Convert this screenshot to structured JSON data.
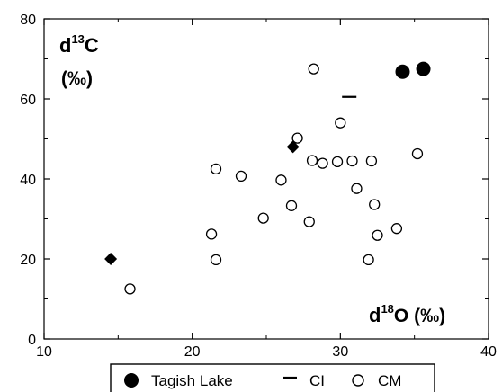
{
  "chart_data": {
    "type": "scatter",
    "xlim": [
      10,
      40
    ],
    "ylim": [
      0,
      80
    ],
    "x_ticks": [
      "10",
      "20",
      "30",
      "40"
    ],
    "y_ticks": [
      "0",
      "20",
      "40",
      "60",
      "80"
    ],
    "grid": false,
    "legend_position": "bottom-center",
    "annotations": {
      "y_label_prefix": "d",
      "y_label_sup": "13",
      "y_label_main": "C",
      "y_label_unit": "(‰)",
      "x_label_prefix": "d",
      "x_label_sup": "18",
      "x_label_main": "O (‰)"
    },
    "series": [
      {
        "name": "Tagish Lake",
        "marker": "filled-circle",
        "points": [
          [
            34.2,
            66.8
          ],
          [
            35.6,
            67.5
          ]
        ]
      },
      {
        "name": "CI",
        "marker": "dash",
        "points": [
          [
            30.6,
            60.5
          ]
        ]
      },
      {
        "name": "CM",
        "marker": "open-circle",
        "points": [
          [
            15.8,
            12.5
          ],
          [
            21.3,
            26.2
          ],
          [
            21.6,
            19.8
          ],
          [
            21.6,
            42.5
          ],
          [
            23.3,
            40.7
          ],
          [
            24.8,
            30.2
          ],
          [
            26.0,
            39.7
          ],
          [
            26.7,
            33.3
          ],
          [
            27.1,
            50.2
          ],
          [
            27.9,
            29.3
          ],
          [
            28.1,
            44.6
          ],
          [
            28.2,
            67.5
          ],
          [
            28.8,
            43.9
          ],
          [
            29.8,
            44.3
          ],
          [
            30.0,
            54.0
          ],
          [
            30.8,
            44.5
          ],
          [
            31.1,
            37.6
          ],
          [
            31.9,
            19.8
          ],
          [
            32.1,
            44.5
          ],
          [
            32.3,
            33.6
          ],
          [
            32.5,
            25.9
          ],
          [
            33.8,
            27.6
          ],
          [
            35.2,
            46.3
          ]
        ]
      },
      {
        "name": "",
        "marker": "filled-diamond",
        "points": [
          [
            14.5,
            20.0
          ],
          [
            26.8,
            48.0
          ]
        ]
      }
    ]
  }
}
